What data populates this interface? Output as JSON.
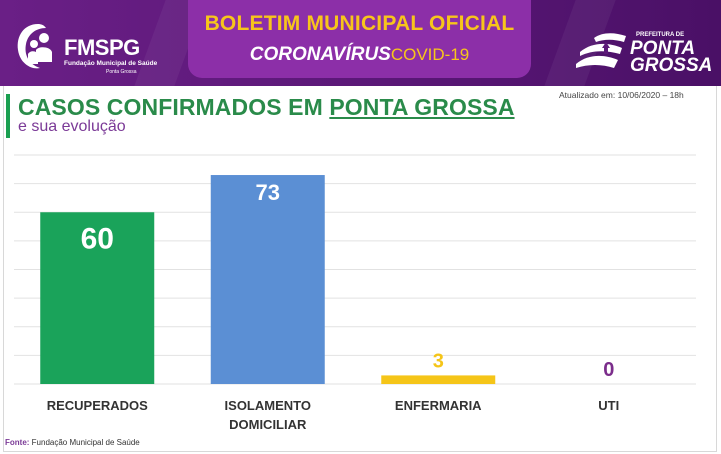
{
  "header": {
    "logo_left": {
      "name": "FMSPG",
      "line1": "Fundação Municipal de Saúde",
      "line2": "Ponta Grossa"
    },
    "title_line1": "BOLETIM MUNICIPAL OFICIAL",
    "title_line2_bold": "CORONAVÍRUS",
    "title_line2_covid": "COVID-19",
    "logo_right": {
      "pref": "PREFEITURA DE",
      "line1": "PONTA",
      "line2": "GROSSA"
    },
    "colors": {
      "background": "#5b1878",
      "title_box": "#8c2fa8",
      "accent_yellow": "#f7c51b"
    }
  },
  "heading": {
    "title_prefix": "CASOS CONFIRMADOS EM ",
    "title_underlined": "PONTA GROSSA",
    "subtitle": "e sua evolução",
    "updated": "Atualizado em: 10/06/2020 – 18h"
  },
  "chart_data": {
    "type": "bar",
    "title": "CASOS CONFIRMADOS EM PONTA GROSSA",
    "categories": [
      {
        "line1": "RECUPERADOS",
        "line2": ""
      },
      {
        "line1": "ISOLAMENTO",
        "line2": "DOMICILIAR"
      },
      {
        "line1": "ENFERMARIA",
        "line2": ""
      },
      {
        "line1": "UTI",
        "line2": ""
      }
    ],
    "values": [
      60,
      73,
      3,
      0
    ],
    "bar_colors": [
      "#1aa35a",
      "#5b8fd4",
      "#f5c518",
      "#7b2d8b"
    ],
    "value_label_colors": [
      "#ffffff",
      "#ffffff",
      "#f5c518",
      "#7b2d8b"
    ],
    "ylim": [
      0,
      80
    ],
    "grid": true,
    "legend": "none"
  },
  "source": {
    "label": "Fonte:",
    "text": "Fundação Municipal de Saúde"
  }
}
